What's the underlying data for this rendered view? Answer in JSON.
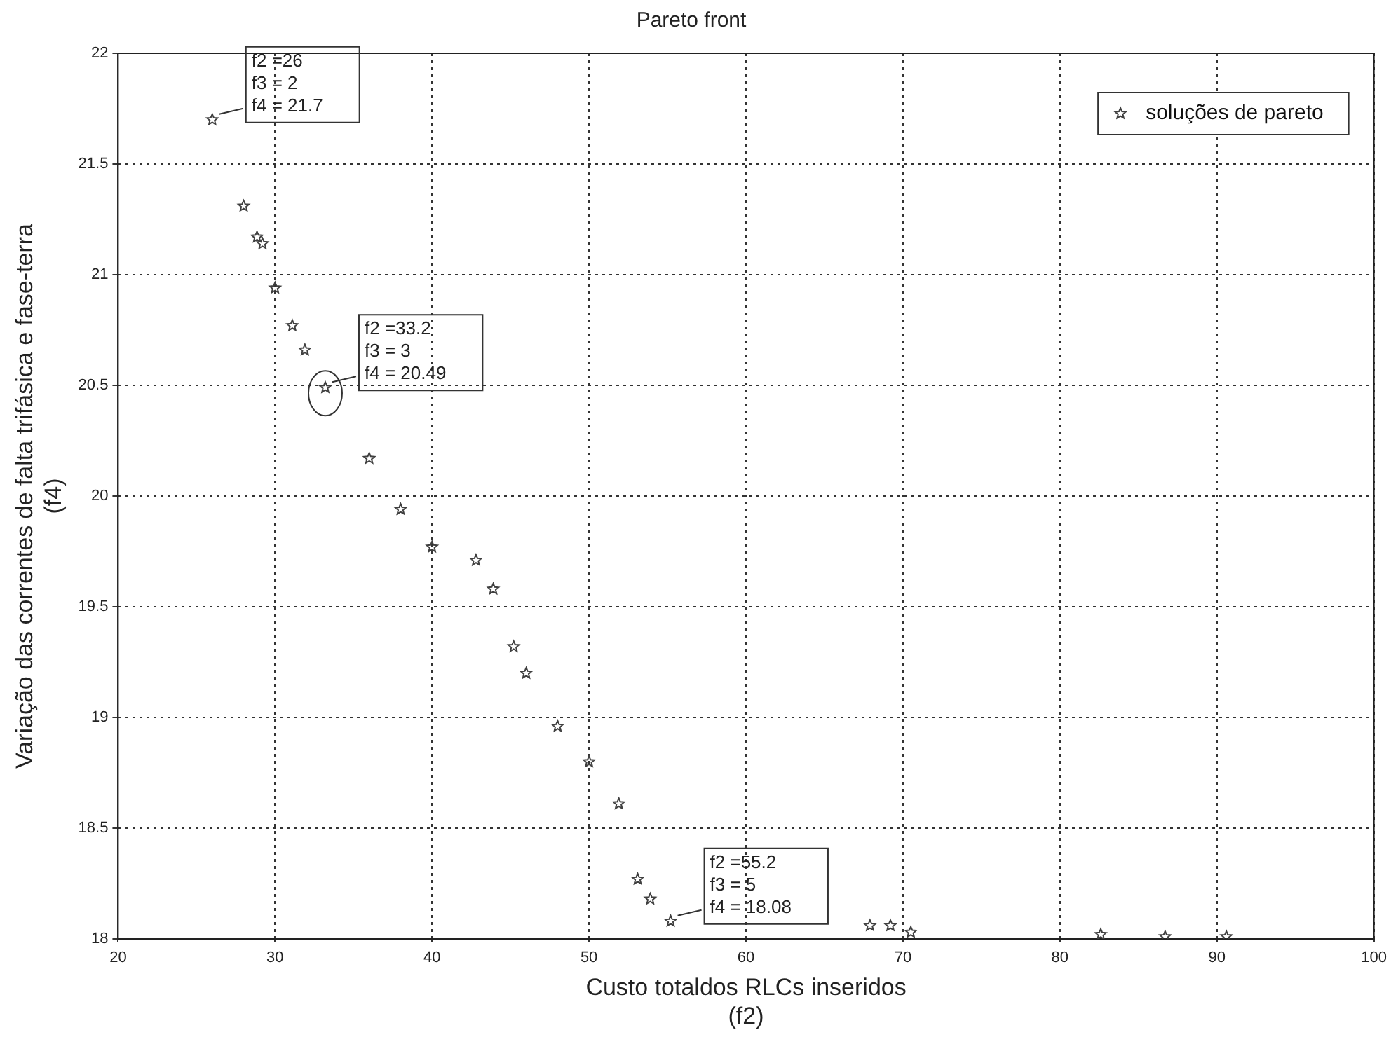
{
  "chart_data": {
    "type": "scatter",
    "title": "Pareto front",
    "xlabel": "Custo totaldos RLCs inseridos\n(f2)",
    "ylabel": "Variação das correntes de falta trifásica e fase-terra\n(f4)",
    "series": [
      {
        "name": "soluções de pareto",
        "color": "#404040",
        "x": [
          26,
          28,
          28.85,
          29.2,
          30,
          31.1,
          31.9,
          33.2,
          36,
          38,
          40,
          42.8,
          43.9,
          45.2,
          46,
          48,
          50,
          51.9,
          53.1,
          53.9,
          55.2,
          67.9,
          69.2,
          70.5,
          82.6,
          86.7,
          90.6
        ],
        "values": [
          21.7,
          21.31,
          21.17,
          21.14,
          20.94,
          20.77,
          20.66,
          20.49,
          20.17,
          19.94,
          19.77,
          19.71,
          19.58,
          19.32,
          19.2,
          18.96,
          18.8,
          18.61,
          18.27,
          18.18,
          18.08,
          18.06,
          18.06,
          18.03,
          18.02,
          18.01,
          18.01
        ]
      }
    ],
    "xlim": [
      20,
      100
    ],
    "xticks": [
      20,
      30,
      40,
      50,
      60,
      70,
      80,
      90,
      100
    ],
    "ylim": [
      18,
      22
    ],
    "yticks": [
      18,
      18.5,
      19,
      19.5,
      20,
      20.5,
      21,
      21.5,
      22
    ],
    "grid": true,
    "legend": "top right",
    "marker": "star",
    "line_style": "none",
    "annotations": [
      {
        "text": "f2 =26\nf3 = 2\nf4 = 21.7",
        "x": 26,
        "y": 21.7
      },
      {
        "text": "f2 =33.2\nf3 = 3\nf4 = 20.49",
        "x": 33.2,
        "y": 20.49
      },
      {
        "text": "f2 =55.2\nf3 = 5\nf4 = 18.08",
        "x": 55.2,
        "y": 18.08
      }
    ]
  }
}
